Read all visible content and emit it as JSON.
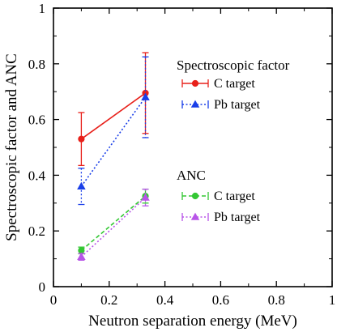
{
  "chart_data": {
    "type": "line",
    "xlabel": "Neutron  separation  energy (MeV)",
    "ylabel": "Spectroscopic factor and ANC",
    "xlim": [
      0,
      1
    ],
    "ylim": [
      0,
      1
    ],
    "x_ticks": [
      "0",
      "0.2",
      "0.4",
      "0.6",
      "0.8",
      "1"
    ],
    "y_ticks": [
      "0",
      "0.2",
      "0.4",
      "0.6",
      "0.8",
      "1"
    ],
    "x_tick_values": [
      0,
      0.2,
      0.4,
      0.6,
      0.8,
      1
    ],
    "y_tick_values": [
      0,
      0.2,
      0.4,
      0.6,
      0.8,
      1
    ],
    "grid": false,
    "legend_groups": [
      {
        "title": "Spectroscopic factor",
        "series_indices": [
          0,
          1
        ]
      },
      {
        "title": "ANC",
        "series_indices": [
          2,
          3
        ]
      }
    ],
    "series": [
      {
        "name": "C target",
        "group": "Spectroscopic factor",
        "color": "#e8201a",
        "line_style": "solid",
        "marker": "circle",
        "x": [
          0.1,
          0.33
        ],
        "y": [
          0.53,
          0.695
        ],
        "err_low": [
          0.095,
          0.145
        ],
        "err_high": [
          0.095,
          0.145
        ]
      },
      {
        "name": "Pb target",
        "group": "Spectroscopic factor",
        "color": "#1a3fe8",
        "line_style": "dotted",
        "marker": "triangle",
        "x": [
          0.1,
          0.33
        ],
        "y": [
          0.36,
          0.68
        ],
        "err_low": [
          0.065,
          0.145
        ],
        "err_high": [
          0.065,
          0.145
        ]
      },
      {
        "name": "C target",
        "group": "ANC",
        "color": "#33c733",
        "line_style": "dashed",
        "marker": "circle",
        "x": [
          0.1,
          0.33
        ],
        "y": [
          0.13,
          0.325
        ],
        "err_low": [
          0.012,
          0.025
        ],
        "err_high": [
          0.012,
          0.025
        ]
      },
      {
        "name": "Pb target",
        "group": "ANC",
        "color": "#b855e8",
        "line_style": "dotted",
        "marker": "triangle",
        "x": [
          0.1,
          0.33
        ],
        "y": [
          0.107,
          0.32
        ],
        "err_low": [
          0.012,
          0.03
        ],
        "err_high": [
          0.012,
          0.03
        ]
      }
    ]
  }
}
